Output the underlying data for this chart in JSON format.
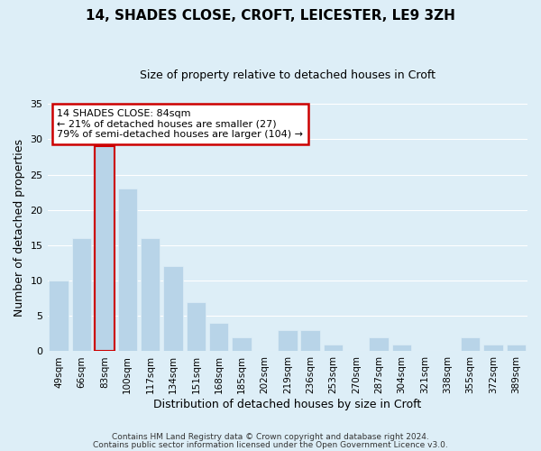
{
  "title": "14, SHADES CLOSE, CROFT, LEICESTER, LE9 3ZH",
  "subtitle": "Size of property relative to detached houses in Croft",
  "xlabel": "Distribution of detached houses by size in Croft",
  "ylabel": "Number of detached properties",
  "bar_labels": [
    "49sqm",
    "66sqm",
    "83sqm",
    "100sqm",
    "117sqm",
    "134sqm",
    "151sqm",
    "168sqm",
    "185sqm",
    "202sqm",
    "219sqm",
    "236sqm",
    "253sqm",
    "270sqm",
    "287sqm",
    "304sqm",
    "321sqm",
    "338sqm",
    "355sqm",
    "372sqm",
    "389sqm"
  ],
  "bar_values": [
    10,
    16,
    29,
    23,
    16,
    12,
    7,
    4,
    2,
    0,
    3,
    3,
    1,
    0,
    2,
    1,
    0,
    0,
    2,
    1,
    1
  ],
  "bar_color": "#b8d4e8",
  "highlight_bar_index": 2,
  "highlight_color": "#cc0000",
  "ylim": [
    0,
    35
  ],
  "yticks": [
    0,
    5,
    10,
    15,
    20,
    25,
    30,
    35
  ],
  "annotation_title": "14 SHADES CLOSE: 84sqm",
  "annotation_line1": "← 21% of detached houses are smaller (27)",
  "annotation_line2": "79% of semi-detached houses are larger (104) →",
  "annotation_box_color": "#ffffff",
  "annotation_box_edge": "#cc0000",
  "footer1": "Contains HM Land Registry data © Crown copyright and database right 2024.",
  "footer2": "Contains public sector information licensed under the Open Government Licence v3.0.",
  "background_color": "#ddeef7",
  "plot_bg_color": "#ddeef7",
  "grid_color": "#ffffff",
  "title_fontsize": 11,
  "subtitle_fontsize": 9,
  "axis_label_fontsize": 9,
  "tick_fontsize": 8,
  "xtick_fontsize": 7.5
}
